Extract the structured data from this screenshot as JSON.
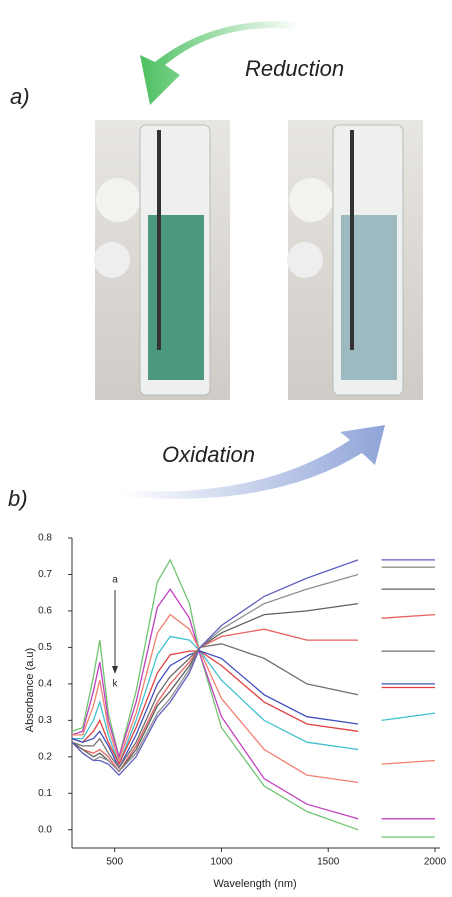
{
  "figure": {
    "panel_a": "a)",
    "reduction": "Reduction",
    "oxidation": "Oxidation",
    "panel_b": "b)"
  },
  "chart_data": {
    "type": "line",
    "xlabel": "Wavelength (nm)",
    "ylabel": "Absorbance (a.u)",
    "annotations": [
      "a",
      "k"
    ],
    "x": [
      300,
      350,
      400,
      430,
      470,
      520,
      600,
      700,
      760,
      850,
      900,
      1000,
      1200,
      1400,
      1640,
      1680,
      1750,
      2000
    ],
    "xlim": [
      300,
      2000
    ],
    "xticks": [
      500,
      1000,
      1500,
      2000
    ],
    "ylim": [
      -0.05,
      0.8
    ],
    "yticks": [
      {
        "value": 0,
        "label": "0.0"
      },
      0.1,
      0.2,
      0.3,
      0.4,
      0.5,
      0.6,
      0.7,
      0.8
    ],
    "series": [
      {
        "color": "#6fc46f",
        "values": [
          0.27,
          0.28,
          0.42,
          0.52,
          0.32,
          0.2,
          0.38,
          0.68,
          0.74,
          0.62,
          0.48,
          0.28,
          0.12,
          0.05,
          0.0,
          null,
          -0.02,
          -0.02
        ]
      },
      {
        "color": "#c040c0",
        "values": [
          0.26,
          0.27,
          0.38,
          0.46,
          0.3,
          0.2,
          0.35,
          0.61,
          0.66,
          0.58,
          0.48,
          0.31,
          0.14,
          0.07,
          0.03,
          null,
          0.03,
          0.03
        ]
      },
      {
        "color": "#f08070",
        "values": [
          0.26,
          0.26,
          0.34,
          0.41,
          0.28,
          0.19,
          0.32,
          0.54,
          0.59,
          0.55,
          0.49,
          0.36,
          0.22,
          0.15,
          0.13,
          null,
          0.18,
          0.19
        ]
      },
      {
        "color": "#40c0d0",
        "values": [
          0.25,
          0.25,
          0.3,
          0.35,
          0.26,
          0.18,
          0.3,
          0.48,
          0.53,
          0.52,
          0.49,
          0.41,
          0.3,
          0.24,
          0.22,
          null,
          0.3,
          0.32
        ]
      },
      {
        "color": "#e04040",
        "values": [
          0.25,
          0.24,
          0.27,
          0.3,
          0.24,
          0.18,
          0.28,
          0.43,
          0.48,
          0.49,
          0.49,
          0.45,
          0.35,
          0.29,
          0.27,
          null,
          0.39,
          0.39
        ]
      },
      {
        "color": "#4050c0",
        "values": [
          0.25,
          0.24,
          0.25,
          0.27,
          0.23,
          0.17,
          0.26,
          0.4,
          0.45,
          0.48,
          0.49,
          0.47,
          0.37,
          0.31,
          0.29,
          null,
          0.4,
          0.4
        ]
      },
      {
        "color": "#707070",
        "values": [
          0.24,
          0.23,
          0.23,
          0.25,
          0.21,
          0.17,
          0.24,
          0.37,
          0.42,
          0.47,
          0.5,
          0.51,
          0.47,
          0.4,
          0.37,
          null,
          0.49,
          0.49
        ]
      },
      {
        "color": "#e86060",
        "values": [
          0.24,
          0.22,
          0.21,
          0.22,
          0.2,
          0.16,
          0.23,
          0.35,
          0.4,
          0.46,
          0.5,
          0.53,
          0.55,
          0.52,
          0.52,
          null,
          0.58,
          0.59
        ]
      },
      {
        "color": "#606060",
        "values": [
          0.24,
          0.22,
          0.2,
          0.21,
          0.19,
          0.16,
          0.22,
          0.34,
          0.38,
          0.45,
          0.5,
          0.54,
          0.59,
          0.6,
          0.62,
          null,
          0.66,
          0.66
        ]
      },
      {
        "color": "#909090",
        "values": [
          0.24,
          0.21,
          0.19,
          0.2,
          0.19,
          0.16,
          0.21,
          0.32,
          0.36,
          0.44,
          0.5,
          0.55,
          0.62,
          0.66,
          0.7,
          null,
          0.72,
          0.72
        ]
      },
      {
        "color": "#6060c0",
        "values": [
          0.24,
          0.21,
          0.19,
          0.19,
          0.18,
          0.15,
          0.2,
          0.31,
          0.35,
          0.43,
          0.5,
          0.56,
          0.64,
          0.69,
          0.74,
          null,
          0.74,
          0.74
        ]
      }
    ]
  }
}
